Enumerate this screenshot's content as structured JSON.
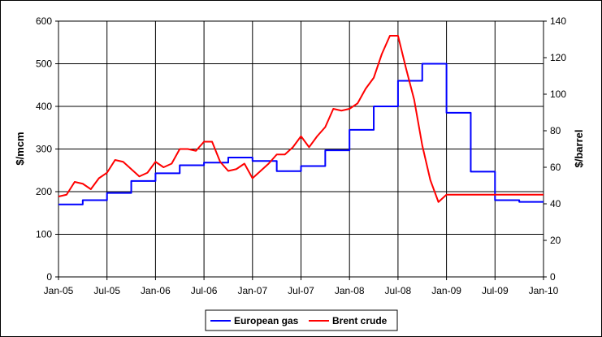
{
  "chart_data": {
    "type": "line",
    "title": "",
    "x": [
      "Jan-05",
      "Feb-05",
      "Mar-05",
      "Apr-05",
      "May-05",
      "Jun-05",
      "Jul-05",
      "Aug-05",
      "Sep-05",
      "Oct-05",
      "Nov-05",
      "Dec-05",
      "Jan-06",
      "Feb-06",
      "Mar-06",
      "Apr-06",
      "May-06",
      "Jun-06",
      "Jul-06",
      "Aug-06",
      "Sep-06",
      "Oct-06",
      "Nov-06",
      "Dec-06",
      "Jan-07",
      "Feb-07",
      "Mar-07",
      "Apr-07",
      "May-07",
      "Jun-07",
      "Jul-07",
      "Aug-07",
      "Sep-07",
      "Oct-07",
      "Nov-07",
      "Dec-07",
      "Jan-08",
      "Feb-08",
      "Mar-08",
      "Apr-08",
      "May-08",
      "Jun-08",
      "Jul-08",
      "Aug-08",
      "Sep-08",
      "Oct-08",
      "Nov-08",
      "Dec-08",
      "Jan-09",
      "Feb-09",
      "Mar-09",
      "Apr-09",
      "May-09",
      "Jun-09",
      "Jul-09",
      "Aug-09",
      "Sep-09",
      "Oct-09",
      "Nov-09",
      "Dec-09",
      "Jan-10"
    ],
    "x_tick_labels": [
      "Jan-05",
      "Jul-05",
      "Jan-06",
      "Jul-06",
      "Jan-07",
      "Jul-07",
      "Jan-08",
      "Jul-08",
      "Jan-09",
      "Jul-09",
      "Jan-10"
    ],
    "ylabel_left": "$/mcm",
    "ylabel_right": "$/barrel",
    "ylim_left": [
      0,
      600
    ],
    "ylim_right": [
      0,
      140
    ],
    "yticks_left": [
      "0",
      "100",
      "200",
      "300",
      "400",
      "500",
      "600"
    ],
    "yticks_right": [
      "0",
      "20",
      "40",
      "60",
      "80",
      "100",
      "120",
      "140"
    ],
    "grid": true,
    "legend_position": "bottom",
    "series": [
      {
        "name": "European gas",
        "axis": "left",
        "color": "#0000ff",
        "step": true,
        "values": [
          170,
          170,
          170,
          180,
          180,
          180,
          197,
          197,
          197,
          225,
          225,
          225,
          243,
          243,
          243,
          262,
          262,
          262,
          268,
          268,
          268,
          280,
          280,
          280,
          272,
          272,
          272,
          248,
          248,
          248,
          260,
          260,
          260,
          297,
          297,
          297,
          345,
          345,
          345,
          400,
          400,
          400,
          460,
          460,
          460,
          500,
          500,
          500,
          385,
          385,
          385,
          247,
          247,
          247,
          180,
          180,
          180,
          176,
          176,
          176,
          176
        ]
      },
      {
        "name": "Brent crude",
        "axis": "right",
        "color": "#ff0000",
        "step": false,
        "values": [
          44,
          45,
          52,
          51,
          48,
          54,
          57,
          64,
          63,
          59,
          55,
          57,
          63,
          60,
          62,
          70,
          70,
          69,
          74,
          74,
          63,
          58,
          59,
          62,
          54,
          58,
          62,
          67,
          67,
          71,
          77,
          71,
          77,
          82,
          92,
          91,
          92,
          95,
          103,
          109,
          122,
          132,
          132,
          114,
          97,
          72,
          53,
          41,
          45,
          45,
          45,
          45,
          45,
          45,
          45,
          45,
          45,
          45,
          45,
          45,
          45
        ]
      }
    ]
  }
}
